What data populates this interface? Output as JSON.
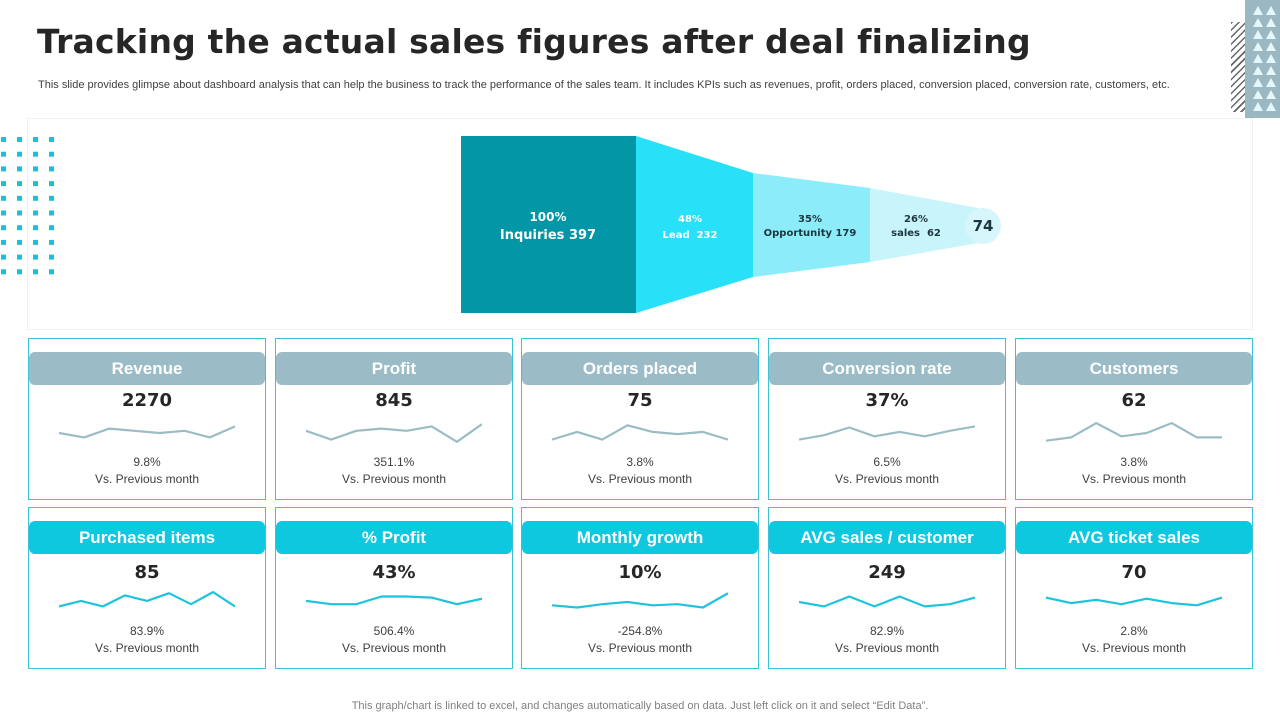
{
  "title": "Tracking the actual sales figures after deal finalizing",
  "subtitle": "This slide provides glimpse about dashboard analysis that can help the business to track the performance of the sales team. It includes KPIs such as revenues, profit, orders placed, conversion placed, conversion rate, customers, etc.",
  "funnel": {
    "stages": [
      {
        "pct": "100%",
        "label": "Inquiries 397",
        "color": "#0296a6"
      },
      {
        "pct": "48%",
        "label": "Lead  232",
        "color": "#28e0f8"
      },
      {
        "pct": "35%",
        "label": "Opportunity 179",
        "color": "#8cecfa"
      },
      {
        "pct": "26%",
        "label": "sales  62",
        "color": "#c8f4fb"
      }
    ],
    "end_value": "74"
  },
  "cards_row1": [
    {
      "title": "Revenue",
      "value": "2270",
      "change": "9.8%",
      "vs": "Vs. Previous  month",
      "spark": [
        0.5,
        0.3,
        0.7,
        0.6,
        0.5,
        0.6,
        0.3,
        0.8
      ]
    },
    {
      "title": "Profit",
      "value": "845",
      "change": "351.1%",
      "vs": "Vs. Previous  month",
      "spark": [
        0.6,
        0.2,
        0.6,
        0.7,
        0.6,
        0.8,
        0.1,
        0.9
      ]
    },
    {
      "title": "Orders placed",
      "value": "75",
      "change": "3.8%",
      "vs": "Vs. Previous  month",
      "spark": [
        0.2,
        0.55,
        0.2,
        0.85,
        0.55,
        0.45,
        0.55,
        0.2
      ]
    },
    {
      "title": "Conversion rate",
      "value": "37%",
      "change": "6.5%",
      "vs": "Vs. Previous  month",
      "spark": [
        0.2,
        0.4,
        0.75,
        0.35,
        0.55,
        0.35,
        0.6,
        0.8
      ]
    },
    {
      "title": "Customers",
      "value": "62",
      "change": "3.8%",
      "vs": "Vs. Previous  month",
      "spark": [
        0.15,
        0.3,
        0.95,
        0.35,
        0.5,
        0.95,
        0.3,
        0.3
      ]
    }
  ],
  "cards_row2": [
    {
      "title": "Purchased items",
      "value": "85",
      "change": "83.9%",
      "vs": "Vs. Previous  month",
      "spark": [
        0.3,
        0.55,
        0.3,
        0.8,
        0.55,
        0.9,
        0.4,
        0.95,
        0.3
      ]
    },
    {
      "title": "% Profit",
      "value": "43%",
      "change": "506.4%",
      "vs": "Vs. Previous  month",
      "spark": [
        0.55,
        0.4,
        0.4,
        0.75,
        0.75,
        0.7,
        0.4,
        0.65
      ]
    },
    {
      "title": "Monthly growth",
      "value": "10%",
      "change": "-254.8%",
      "vs": "Vs. Previous  month",
      "spark": [
        0.35,
        0.25,
        0.4,
        0.5,
        0.35,
        0.4,
        0.25,
        0.9
      ]
    },
    {
      "title": "AVG sales / customer",
      "value": "249",
      "change": "82.9%",
      "vs": "Vs. Previous  month",
      "spark": [
        0.5,
        0.3,
        0.75,
        0.3,
        0.75,
        0.3,
        0.4,
        0.7
      ]
    },
    {
      "title": "AVG ticket sales",
      "value": "70",
      "change": "2.8%",
      "vs": "Vs. Previous  month",
      "spark": [
        0.7,
        0.45,
        0.6,
        0.4,
        0.65,
        0.45,
        0.35,
        0.7
      ]
    }
  ],
  "colors": {
    "row1_accent": "#9bbcc6",
    "row2_accent": "#0ec8e0",
    "spark_row1": "#9bbcc6",
    "spark_row2": "#1ec3dc"
  },
  "footer": "This graph/chart is linked to excel,  and changes automatically based on data. Just left click on it and select “Edit Data”."
}
